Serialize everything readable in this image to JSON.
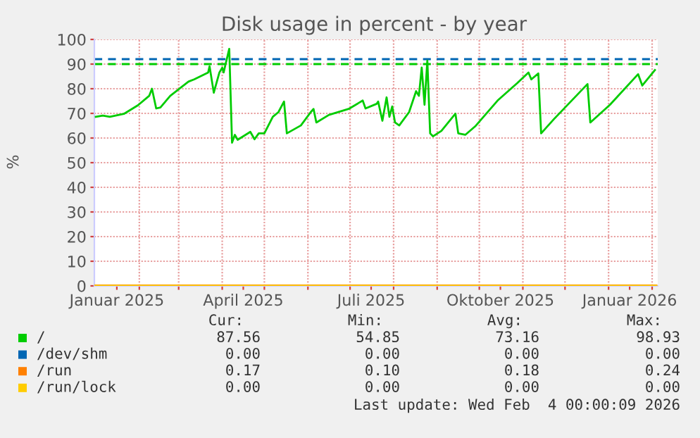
{
  "chart_data": {
    "type": "line",
    "title": "Disk usage in percent - by year",
    "ylabel": "%",
    "xlim": [
      "2024-12-31",
      "2026-02-05"
    ],
    "ylim": [
      0,
      100
    ],
    "yticks": [
      0,
      10,
      20,
      30,
      40,
      50,
      60,
      70,
      80,
      90,
      100
    ],
    "xticks": [
      {
        "value": "2025-01-16",
        "label": "Januar 2025"
      },
      {
        "value": "2025-04-16",
        "label": "April 2025"
      },
      {
        "value": "2025-07-16",
        "label": "Juli 2025"
      },
      {
        "value": "2025-10-16",
        "label": "Oktober 2025"
      },
      {
        "value": "2026-01-16",
        "label": "Januar 2026"
      },
      {
        "value": "2025-02-01",
        "label": null
      },
      {
        "value": "2025-03-01",
        "label": null
      },
      {
        "value": "2025-04-01",
        "label": null
      },
      {
        "value": "2025-05-01",
        "label": null
      },
      {
        "value": "2025-06-01",
        "label": null
      },
      {
        "value": "2025-07-01",
        "label": null
      },
      {
        "value": "2025-08-01",
        "label": null
      },
      {
        "value": "2025-09-01",
        "label": null
      },
      {
        "value": "2025-10-01",
        "label": null
      },
      {
        "value": "2025-11-01",
        "label": null
      },
      {
        "value": "2025-12-01",
        "label": null
      },
      {
        "value": "2026-01-01",
        "label": null
      },
      {
        "value": "2026-02-01",
        "label": null
      }
    ],
    "grid": true,
    "legend": "bottom",
    "series": [
      {
        "name": "/",
        "color": "#00cc00",
        "x": [
          "2025-01-01",
          "2025-01-06",
          "2025-01-11",
          "2025-01-21",
          "2025-01-31",
          "2025-02-08",
          "2025-02-10",
          "2025-02-13",
          "2025-02-16",
          "2025-02-23",
          "2025-03-08",
          "2025-03-12",
          "2025-03-22",
          "2025-03-23",
          "2025-03-26",
          "2025-03-30",
          "2025-04-01",
          "2025-04-02",
          "2025-04-06",
          "2025-04-08",
          "2025-04-10",
          "2025-04-12",
          "2025-04-16",
          "2025-04-21",
          "2025-04-24",
          "2025-04-27",
          "2025-05-01",
          "2025-05-07",
          "2025-05-11",
          "2025-05-15",
          "2025-05-17",
          "2025-05-27",
          "2025-06-03",
          "2025-06-05",
          "2025-06-07",
          "2025-06-16",
          "2025-06-30",
          "2025-07-10",
          "2025-07-12",
          "2025-07-20",
          "2025-07-21",
          "2025-07-24",
          "2025-07-27",
          "2025-07-29",
          "2025-07-31",
          "2025-08-02",
          "2025-08-05",
          "2025-08-12",
          "2025-08-17",
          "2025-08-19",
          "2025-08-21",
          "2025-08-23",
          "2025-08-25",
          "2025-08-27",
          "2025-08-29",
          "2025-09-04",
          "2025-09-14",
          "2025-09-16",
          "2025-09-21",
          "2025-09-28",
          "2025-10-14",
          "2025-10-28",
          "2025-11-05",
          "2025-11-07",
          "2025-11-12",
          "2025-11-14",
          "2025-11-23",
          "2025-12-17",
          "2025-12-19",
          "2026-01-02",
          "2026-01-22",
          "2026-01-25",
          "2026-02-03"
        ],
        "values": [
          68.6,
          69.1,
          68.6,
          69.8,
          73.3,
          77.1,
          80.0,
          72.0,
          72.4,
          77.1,
          82.9,
          83.8,
          86.6,
          89.1,
          78.4,
          86.6,
          88.5,
          86.6,
          96.2,
          58.1,
          61.3,
          59.3,
          60.7,
          62.5,
          59.5,
          61.9,
          61.9,
          68.6,
          70.5,
          74.8,
          61.9,
          65.1,
          70.5,
          71.8,
          66.3,
          69.4,
          71.8,
          75.2,
          72.0,
          73.9,
          74.8,
          67.0,
          76.5,
          68.6,
          72.8,
          66.3,
          65.1,
          70.5,
          79.0,
          77.1,
          88.6,
          73.5,
          91.4,
          61.9,
          60.7,
          62.9,
          69.9,
          61.9,
          61.3,
          64.7,
          75.2,
          82.3,
          86.6,
          83.8,
          86.2,
          61.9,
          67.6,
          81.9,
          66.3,
          73.5,
          85.9,
          81.3,
          87.6
        ]
      },
      {
        "name": "/dev/shm",
        "color": "#0066b3"
      },
      {
        "name": "/run",
        "color": "#ff8000",
        "x": [
          "2024-12-31",
          "2026-02-04"
        ],
        "values": [
          0.2,
          0.2
        ]
      },
      {
        "name": "/run/lock",
        "color": "#ffcc00",
        "x": [
          "2024-12-31",
          "2026-02-04"
        ],
        "values": [
          0,
          0
        ]
      }
    ],
    "ref_lines": [
      {
        "axis": "y",
        "value": 92,
        "color": "#0066b3",
        "line_style": "dashed"
      },
      {
        "axis": "y",
        "value": 90,
        "color": "#00cc00",
        "line_style": "dashed"
      }
    ],
    "annotations": [
      "Cur:",
      "Min:",
      "Avg:",
      "Max:",
      "87.56",
      "54.85",
      "73.16",
      "98.93",
      "0.00",
      "0.00",
      "0.00",
      "0.00",
      "0.17",
      "0.10",
      "0.18",
      "0.24",
      "0.00",
      "0.00",
      "0.00",
      "0.00",
      "Last update: Wed Feb  4 00:00:09 2026"
    ]
  }
}
